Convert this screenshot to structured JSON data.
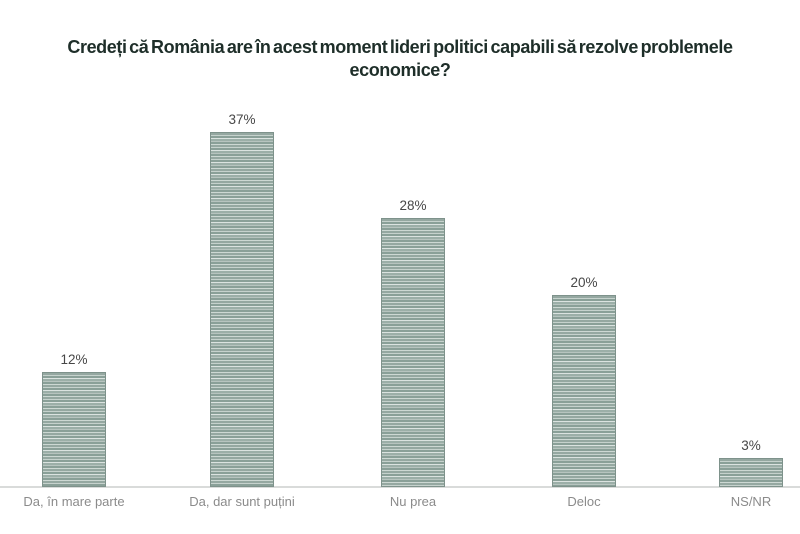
{
  "chart_data": {
    "type": "bar",
    "title": "Credeți că România are în acest moment lideri politici capabili să rezolve problemele economice?",
    "categories": [
      "Da, în mare parte",
      "Da, dar sunt puțini",
      "Nu prea",
      "Deloc",
      "NS/NR"
    ],
    "values": [
      12,
      37,
      28,
      20,
      3
    ],
    "value_labels": [
      "12%",
      "37%",
      "28%",
      "20%",
      "3%"
    ],
    "xlabel": "",
    "ylabel": "",
    "ylim": [
      0,
      40
    ],
    "grid": false,
    "legend": "none",
    "bar_fill_base_color": "#95a8a1",
    "bar_stripe_light_color": "#dbe3e0",
    "bar_border_color": "#7e928b",
    "title_color": "#1e2e29",
    "value_label_color": "#474747",
    "category_label_color": "#8b8b8b",
    "baseline_color": "#d9dbda"
  }
}
